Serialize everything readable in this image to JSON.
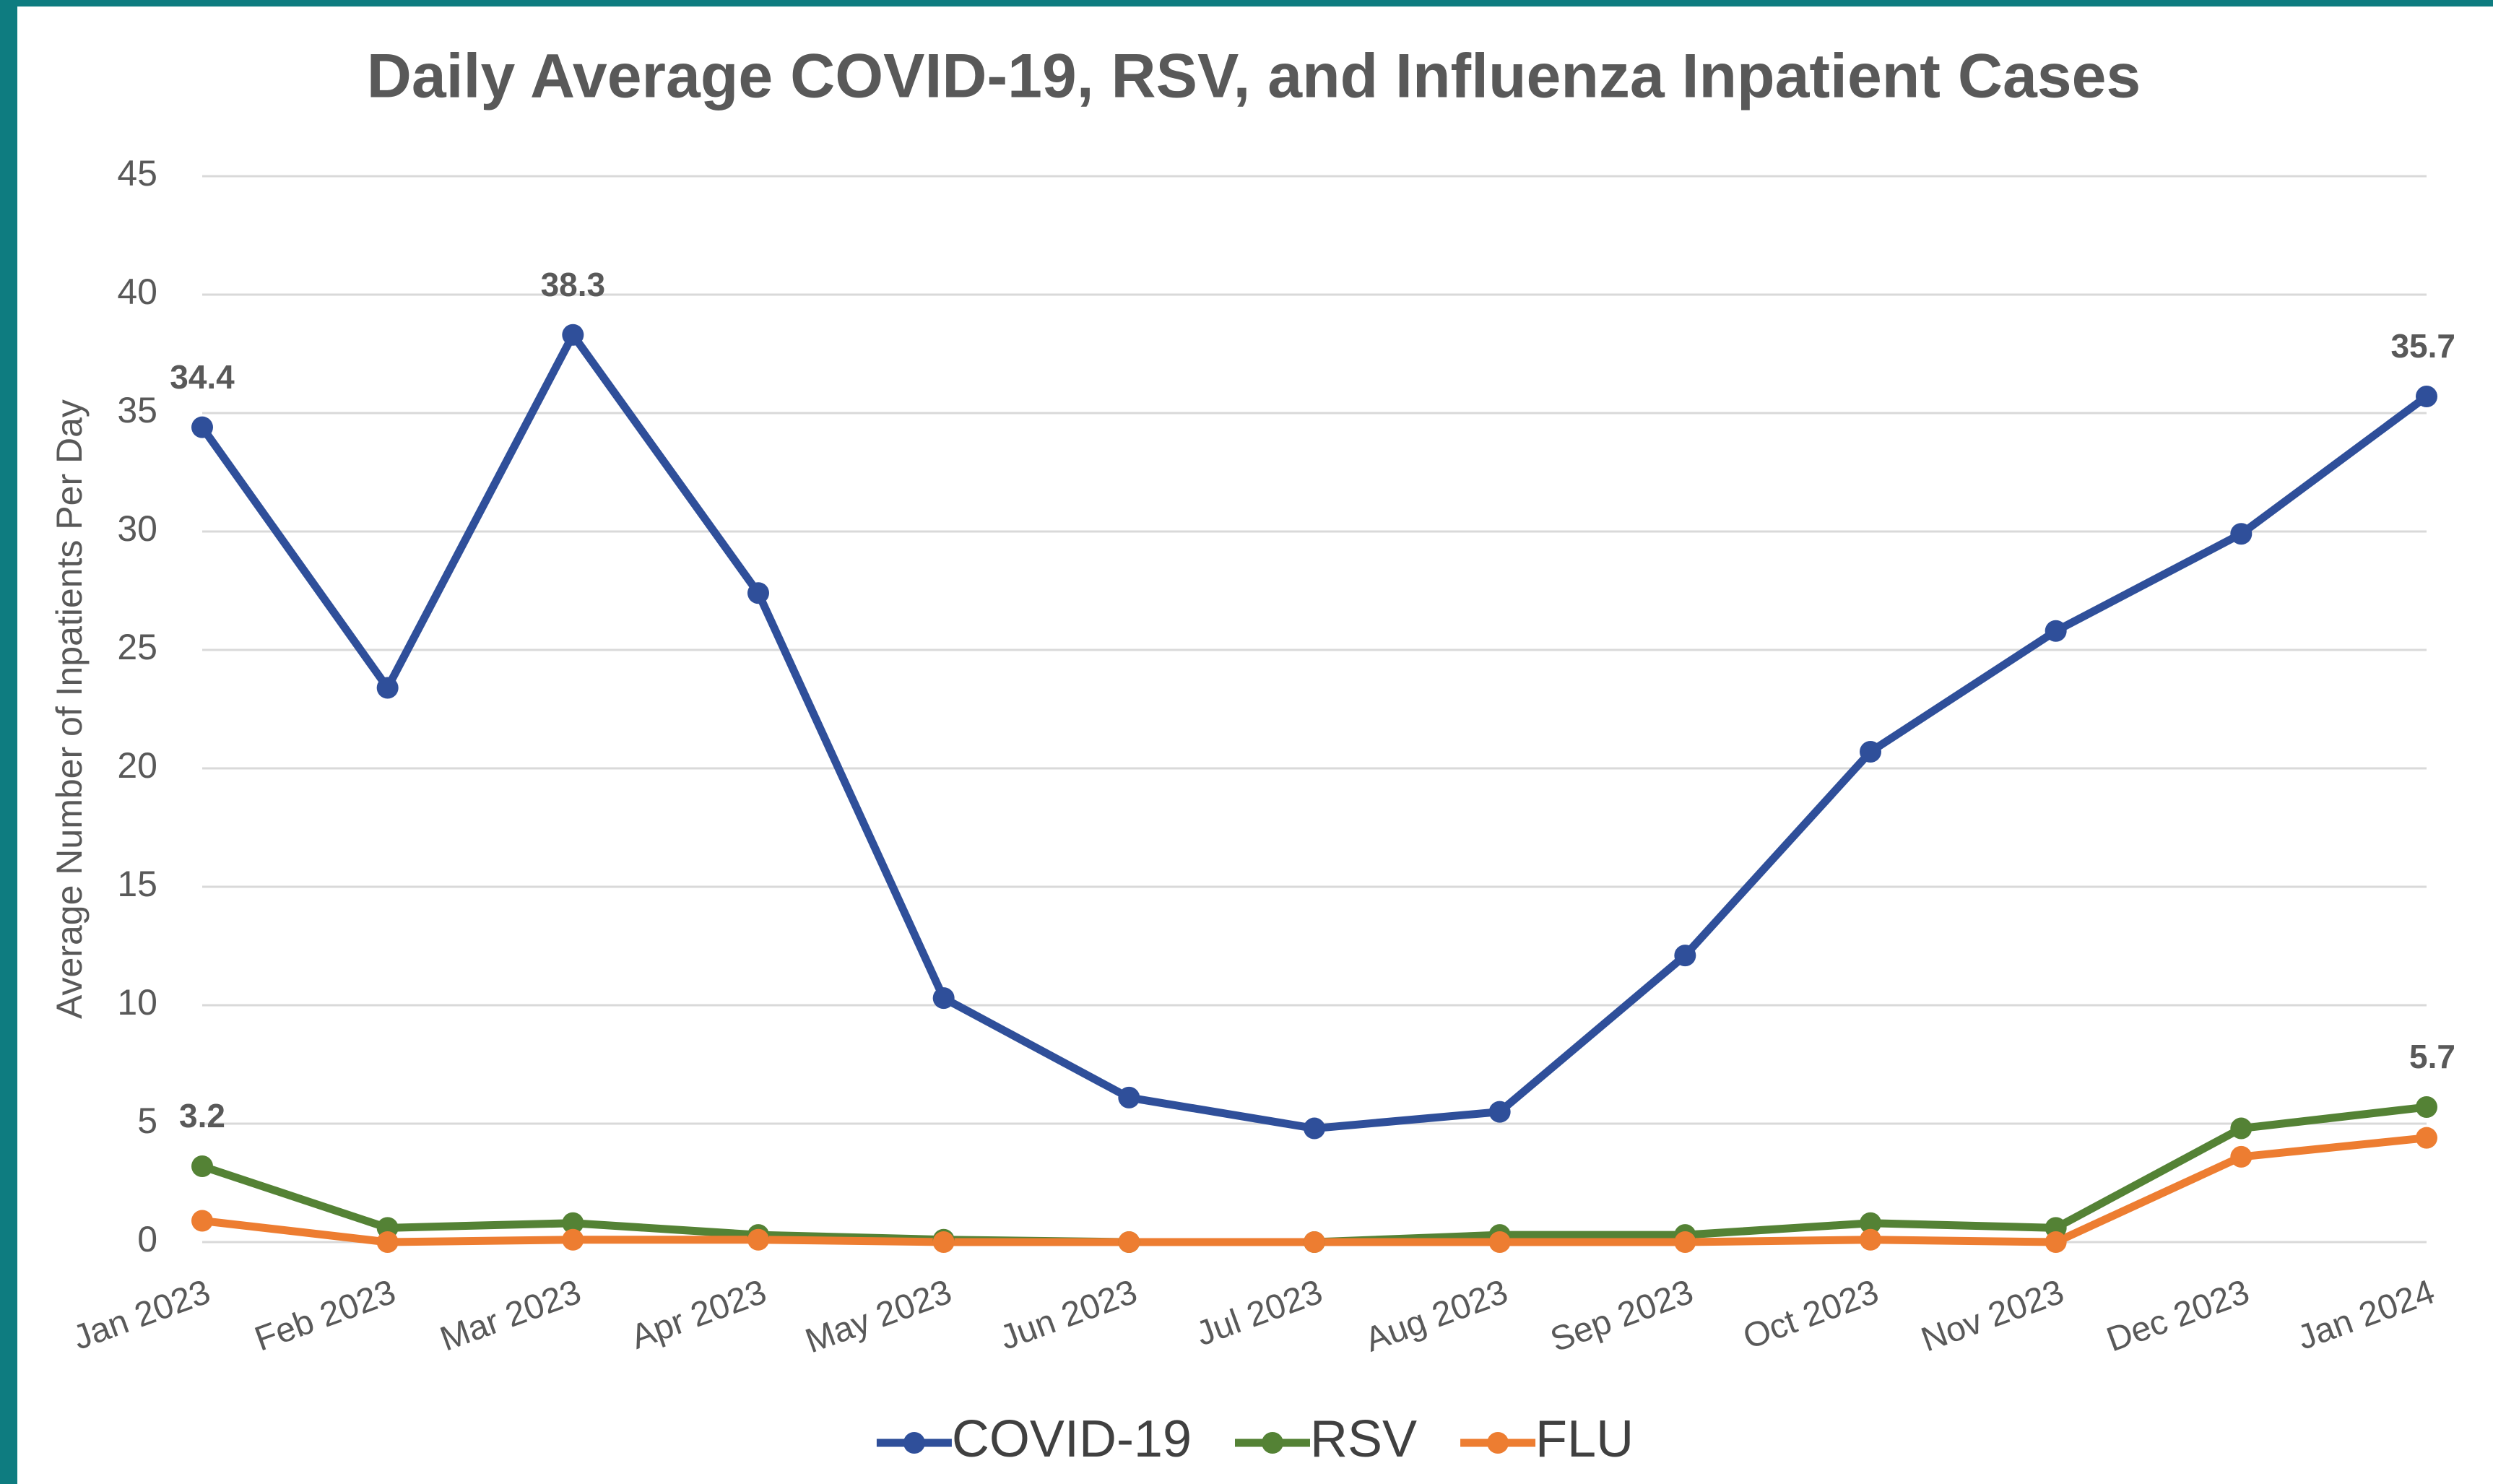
{
  "chart_data": {
    "type": "line",
    "title": "Daily Average COVID-19, RSV, and Influenza Inpatient Cases",
    "y_label": "Average Number of Inpatients Per Day",
    "categories": [
      "Jan 2023",
      "Feb 2023",
      "Mar 2023",
      "Apr 2023",
      "May 2023",
      "Jun 2023",
      "Jul 2023",
      "Aug 2023",
      "Sep 2023",
      "Oct 2023",
      "Nov 2023",
      "Dec 2023",
      "Jan 2024"
    ],
    "series": [
      {
        "name": "COVID-19",
        "color": "#2f4f9a",
        "values": [
          34.4,
          23.4,
          38.3,
          27.4,
          10.3,
          6.1,
          4.8,
          5.5,
          12.1,
          20.7,
          25.8,
          29.9,
          35.7
        ],
        "labeled_points": [
          0,
          2,
          12
        ]
      },
      {
        "name": "RSV",
        "color": "#548235",
        "values": [
          3.2,
          0.6,
          0.8,
          0.3,
          0.1,
          0,
          0,
          0.3,
          0.3,
          0.8,
          0.6,
          4.8,
          5.7
        ],
        "labeled_points": [
          0,
          12
        ]
      },
      {
        "name": "FLU",
        "color": "#ed7d31",
        "values": [
          0.9,
          0,
          0.1,
          0.1,
          0,
          0,
          0,
          0,
          0,
          0.1,
          0,
          3.6,
          4.4
        ],
        "labeled_points": []
      }
    ],
    "ylim": [
      0,
      45
    ],
    "yticks": [
      0,
      5,
      10,
      15,
      20,
      25,
      30,
      35,
      40,
      45
    ],
    "grid": true,
    "legend": "bottom"
  }
}
